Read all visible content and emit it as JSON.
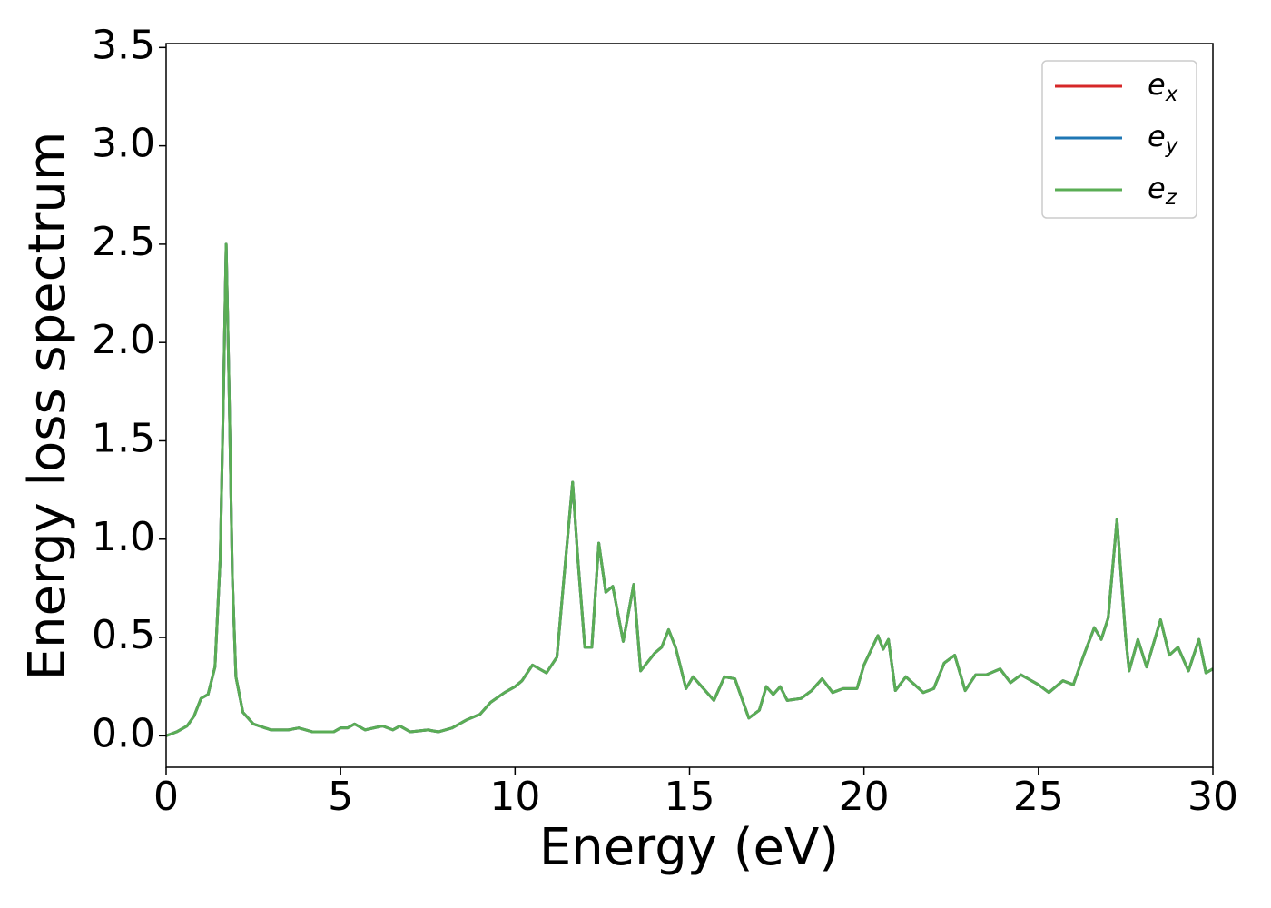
{
  "chart_data": {
    "type": "line",
    "xlabel": "Energy (eV)",
    "ylabel": "Energy loss spectrum",
    "x": [
      0,
      0.3,
      0.6,
      0.8,
      1.0,
      1.2,
      1.4,
      1.55,
      1.65,
      1.72,
      1.8,
      1.9,
      2.0,
      2.2,
      2.5,
      3.0,
      3.5,
      3.8,
      4.2,
      4.8,
      5.0,
      5.2,
      5.4,
      5.7,
      6.2,
      6.5,
      6.7,
      7.0,
      7.5,
      7.8,
      8.2,
      8.6,
      9.0,
      9.3,
      9.7,
      10.0,
      10.2,
      10.5,
      10.9,
      11.2,
      11.4,
      11.65,
      11.8,
      12.0,
      12.2,
      12.4,
      12.6,
      12.8,
      13.1,
      13.4,
      13.6,
      14.0,
      14.2,
      14.4,
      14.6,
      14.9,
      15.1,
      15.3,
      15.7,
      16.0,
      16.3,
      16.7,
      17.0,
      17.2,
      17.4,
      17.6,
      17.8,
      18.2,
      18.5,
      18.8,
      19.1,
      19.4,
      19.8,
      20.0,
      20.4,
      20.55,
      20.7,
      20.9,
      21.2,
      21.7,
      22.0,
      22.3,
      22.6,
      22.9,
      23.2,
      23.5,
      23.9,
      24.2,
      24.5,
      25.0,
      25.3,
      25.7,
      26.0,
      26.3,
      26.6,
      26.8,
      27.0,
      27.25,
      27.5,
      27.6,
      27.85,
      28.1,
      28.5,
      28.75,
      29.0,
      29.3,
      29.6,
      29.8,
      30
    ],
    "series": [
      {
        "name": "e_x",
        "color": "#d62728",
        "values": [
          0,
          0.02,
          0.05,
          0.1,
          0.19,
          0.21,
          0.35,
          0.9,
          1.8,
          2.5,
          1.8,
          0.8,
          0.3,
          0.12,
          0.06,
          0.03,
          0.03,
          0.04,
          0.02,
          0.02,
          0.04,
          0.04,
          0.06,
          0.03,
          0.05,
          0.03,
          0.05,
          0.02,
          0.03,
          0.02,
          0.04,
          0.08,
          0.11,
          0.17,
          0.22,
          0.25,
          0.28,
          0.36,
          0.32,
          0.4,
          0.8,
          1.29,
          0.9,
          0.45,
          0.45,
          0.98,
          0.73,
          0.76,
          0.48,
          0.77,
          0.33,
          0.42,
          0.45,
          0.54,
          0.45,
          0.24,
          0.3,
          0.26,
          0.18,
          0.3,
          0.29,
          0.09,
          0.13,
          0.25,
          0.21,
          0.25,
          0.18,
          0.19,
          0.23,
          0.29,
          0.22,
          0.24,
          0.24,
          0.36,
          0.51,
          0.44,
          0.49,
          0.23,
          0.3,
          0.22,
          0.24,
          0.37,
          0.41,
          0.23,
          0.31,
          0.31,
          0.34,
          0.27,
          0.31,
          0.26,
          0.22,
          0.28,
          0.26,
          0.41,
          0.55,
          0.49,
          0.6,
          1.1,
          0.5,
          0.33,
          0.49,
          0.35,
          0.59,
          0.41,
          0.45,
          0.33,
          0.49,
          0.32,
          0.34
        ]
      },
      {
        "name": "e_y",
        "color": "#1f77b4",
        "values": [
          0,
          0.02,
          0.05,
          0.1,
          0.19,
          0.21,
          0.35,
          0.9,
          1.8,
          2.5,
          1.8,
          0.8,
          0.3,
          0.12,
          0.06,
          0.03,
          0.03,
          0.04,
          0.02,
          0.02,
          0.04,
          0.04,
          0.06,
          0.03,
          0.05,
          0.03,
          0.05,
          0.02,
          0.03,
          0.02,
          0.04,
          0.08,
          0.11,
          0.17,
          0.22,
          0.25,
          0.28,
          0.36,
          0.32,
          0.4,
          0.8,
          1.29,
          0.9,
          0.45,
          0.45,
          0.98,
          0.73,
          0.76,
          0.48,
          0.77,
          0.33,
          0.42,
          0.45,
          0.54,
          0.45,
          0.24,
          0.3,
          0.26,
          0.18,
          0.3,
          0.29,
          0.09,
          0.13,
          0.25,
          0.21,
          0.25,
          0.18,
          0.19,
          0.23,
          0.29,
          0.22,
          0.24,
          0.24,
          0.36,
          0.51,
          0.44,
          0.49,
          0.23,
          0.3,
          0.22,
          0.24,
          0.37,
          0.41,
          0.23,
          0.31,
          0.31,
          0.34,
          0.27,
          0.31,
          0.26,
          0.22,
          0.28,
          0.26,
          0.41,
          0.55,
          0.49,
          0.6,
          1.1,
          0.5,
          0.33,
          0.49,
          0.35,
          0.59,
          0.41,
          0.45,
          0.33,
          0.49,
          0.32,
          0.34
        ]
      },
      {
        "name": "e_z",
        "color": "#5aad55",
        "values": [
          0,
          0.02,
          0.05,
          0.1,
          0.19,
          0.21,
          0.35,
          0.9,
          1.8,
          2.5,
          1.8,
          0.8,
          0.3,
          0.12,
          0.06,
          0.03,
          0.03,
          0.04,
          0.02,
          0.02,
          0.04,
          0.04,
          0.06,
          0.03,
          0.05,
          0.03,
          0.05,
          0.02,
          0.03,
          0.02,
          0.04,
          0.08,
          0.11,
          0.17,
          0.22,
          0.25,
          0.28,
          0.36,
          0.32,
          0.4,
          0.8,
          1.29,
          0.9,
          0.45,
          0.45,
          0.98,
          0.73,
          0.76,
          0.48,
          0.77,
          0.33,
          0.42,
          0.45,
          0.54,
          0.45,
          0.24,
          0.3,
          0.26,
          0.18,
          0.3,
          0.29,
          0.09,
          0.13,
          0.25,
          0.21,
          0.25,
          0.18,
          0.19,
          0.23,
          0.29,
          0.22,
          0.24,
          0.24,
          0.36,
          0.51,
          0.44,
          0.49,
          0.23,
          0.3,
          0.22,
          0.24,
          0.37,
          0.41,
          0.23,
          0.31,
          0.31,
          0.34,
          0.27,
          0.31,
          0.26,
          0.22,
          0.28,
          0.26,
          0.41,
          0.55,
          0.49,
          0.6,
          1.1,
          0.5,
          0.33,
          0.49,
          0.35,
          0.59,
          0.41,
          0.45,
          0.33,
          0.49,
          0.32,
          0.34
        ]
      }
    ],
    "xlim": [
      0,
      30
    ],
    "xticks": [
      0,
      5,
      10,
      15,
      20,
      25,
      30
    ],
    "ylim": [
      -0.16,
      3.52
    ],
    "yticks": [
      {
        "value": 0,
        "label": "0.0"
      },
      {
        "value": 0.5,
        "label": "0.5"
      },
      {
        "value": 1,
        "label": "1.0"
      },
      {
        "value": 1.5,
        "label": "1.5"
      },
      {
        "value": 2,
        "label": "2.0"
      },
      {
        "value": 2.5,
        "label": "2.5"
      },
      {
        "value": 3,
        "label": "3.0"
      },
      {
        "value": 3.5,
        "label": "3.5"
      }
    ],
    "legend": "upper right",
    "grid": false
  }
}
